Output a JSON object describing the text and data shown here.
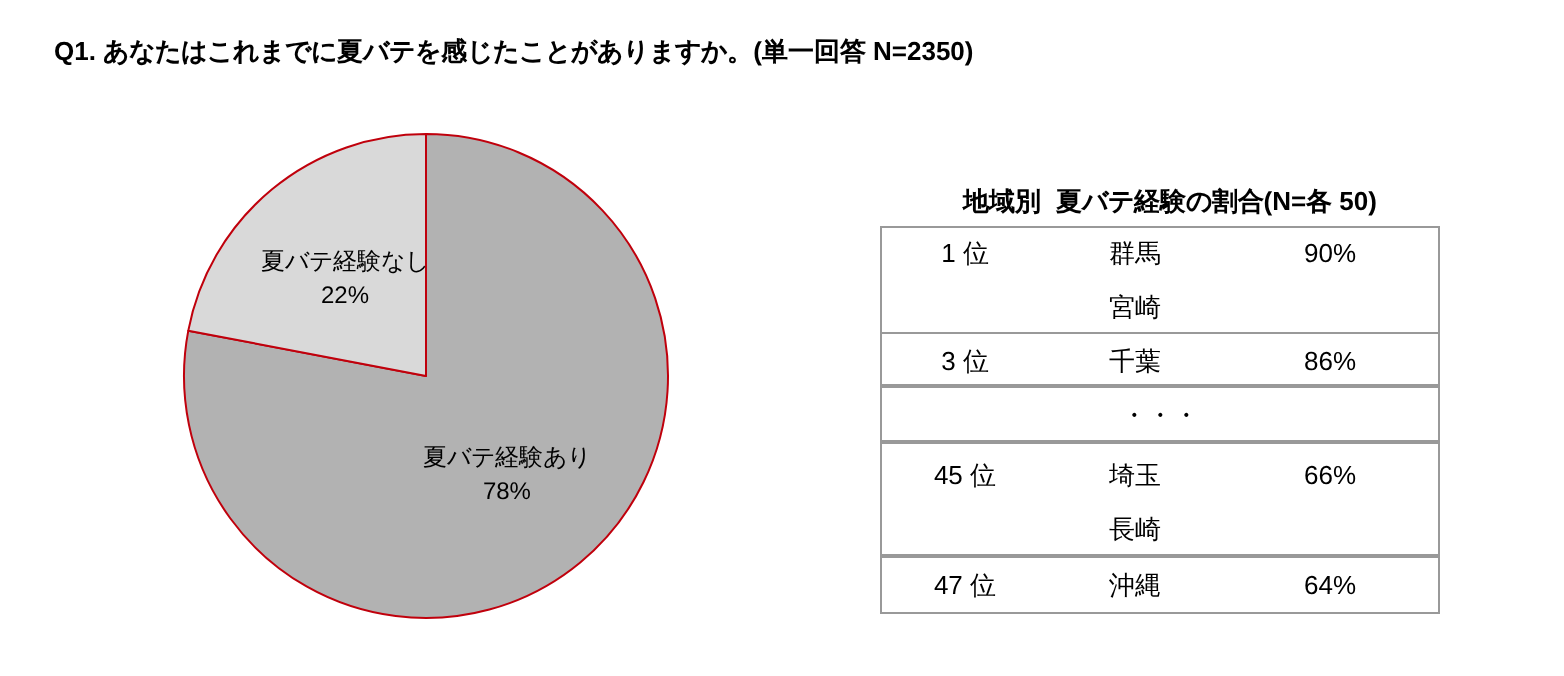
{
  "chart_data": [
    {
      "type": "pie",
      "title": "Q1. あなたはこれまでに夏バテを感じたことがありますか。(単一回答 N=2350)",
      "categories": [
        "夏バテ経験あり",
        "夏バテ経験なし"
      ],
      "values": [
        78,
        22
      ],
      "colors": [
        "#b2b2b2",
        "#d9d9d9"
      ],
      "value_labels": [
        "78%",
        "22%"
      ]
    },
    {
      "type": "other",
      "title": "地域別  夏バテ経験の割合(N=各 50)",
      "annotations": [
        "1 位",
        "群馬",
        "90%",
        "宮崎",
        "3 位",
        "千葉",
        "86%",
        "・・・",
        "45 位",
        "埼玉",
        "66%",
        "長崎",
        "47 位",
        "沖縄",
        "64%"
      ]
    }
  ]
}
